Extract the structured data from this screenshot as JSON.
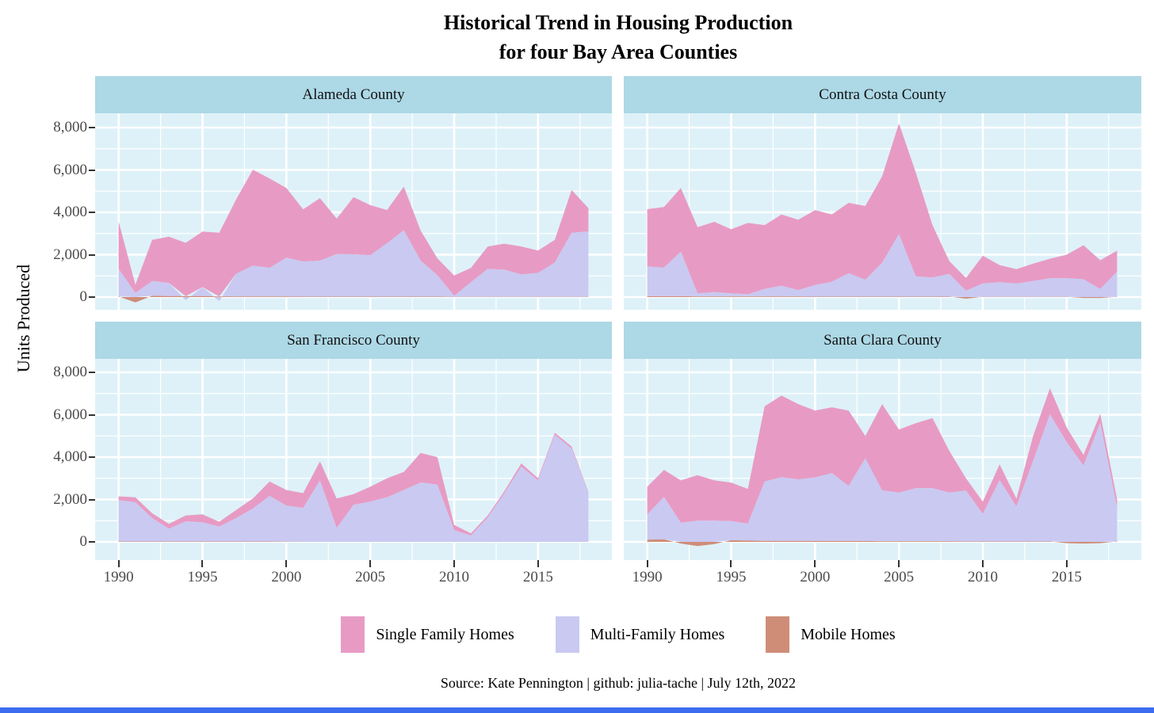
{
  "title": {
    "line1": "Historical Trend in Housing Production",
    "line2": "for four Bay Area Counties"
  },
  "y_axis": {
    "label": "Units Produced",
    "tick_labels": [
      "8,000",
      "6,000",
      "4,000",
      "2,000",
      "0"
    ],
    "tick_values": [
      8000,
      6000,
      4000,
      2000,
      0
    ]
  },
  "x_axis": {
    "tick_labels": [
      "1990",
      "1995",
      "2000",
      "2005",
      "2010",
      "2015"
    ],
    "tick_values": [
      1990,
      1995,
      2000,
      2005,
      2010,
      2015
    ]
  },
  "legend": [
    {
      "label": "Single Family Homes",
      "color": "#e79bc4"
    },
    {
      "label": "Multi-Family Homes",
      "color": "#cac9f1"
    },
    {
      "label": "Mobile Homes",
      "color": "#cf8d78"
    }
  ],
  "caption": "Source: Kate Pennington | github: julia-tache | July 12th, 2022",
  "colors": {
    "strip_background": "#add8e6",
    "panel_background": "#def1f8",
    "grid": "#ffffff",
    "tick_text": "#4a4a4a",
    "footer_bar": "#3b6cf0"
  },
  "chart_data": [
    {
      "type": "area",
      "title": "Alameda County",
      "stacked": true,
      "grid": true,
      "legend_position": "bottom",
      "xlim": [
        1988.6,
        2019.4
      ],
      "ylim": [
        -600,
        8670
      ],
      "x": [
        1990,
        1991,
        1992,
        1993,
        1994,
        1995,
        1996,
        1997,
        1998,
        1999,
        2000,
        2001,
        2002,
        2003,
        2004,
        2005,
        2006,
        2007,
        2008,
        2009,
        2010,
        2011,
        2012,
        2013,
        2014,
        2015,
        2016,
        2017,
        2018
      ],
      "series": [
        {
          "name": "Single Family Homes",
          "values": [
            2250,
            380,
            1940,
            2180,
            2520,
            2620,
            3010,
            3500,
            4530,
            4220,
            3290,
            2460,
            2950,
            1670,
            2695,
            2370,
            1570,
            2060,
            1420,
            800,
            960,
            680,
            1060,
            1230,
            1320,
            1060,
            1070,
            2020,
            1100
          ]
        },
        {
          "name": "Multi-Family Homes",
          "values": [
            1300,
            200,
            700,
            620,
            -150,
            420,
            -200,
            1070,
            1450,
            1350,
            1830,
            1660,
            1700,
            2010,
            2000,
            1950,
            2520,
            3130,
            1700,
            1010,
            50,
            690,
            1320,
            1280,
            1060,
            1130,
            1620,
            3020,
            3090
          ]
        },
        {
          "name": "Mobile Homes",
          "values": [
            30,
            -250,
            60,
            50,
            40,
            50,
            30,
            30,
            30,
            30,
            30,
            20,
            20,
            20,
            20,
            20,
            20,
            20,
            20,
            20,
            10,
            10,
            10,
            10,
            10,
            10,
            10,
            10,
            10
          ]
        }
      ]
    },
    {
      "type": "area",
      "title": "Contra Costa County",
      "stacked": true,
      "grid": true,
      "legend_position": "bottom",
      "xlim": [
        1988.6,
        2019.4
      ],
      "ylim": [
        -600,
        8670
      ],
      "x": [
        1990,
        1991,
        1992,
        1993,
        1994,
        1995,
        1996,
        1997,
        1998,
        1999,
        2000,
        2001,
        2002,
        2003,
        2004,
        2005,
        2006,
        2007,
        2008,
        2009,
        2010,
        2011,
        2012,
        2013,
        2014,
        2015,
        2016,
        2017,
        2018
      ],
      "series": [
        {
          "name": "Single Family Homes",
          "values": [
            2710,
            2860,
            3010,
            3120,
            3320,
            3020,
            3370,
            3020,
            3370,
            3320,
            3530,
            3180,
            3330,
            3480,
            4080,
            5230,
            4920,
            2480,
            610,
            600,
            1310,
            810,
            680,
            820,
            920,
            1110,
            1610,
            1360,
            990
          ]
        },
        {
          "name": "Multi-Family Homes",
          "values": [
            1400,
            1350,
            2100,
            150,
            200,
            150,
            100,
            350,
            500,
            300,
            550,
            700,
            1100,
            800,
            1600,
            2950,
            960,
            900,
            1070,
            300,
            630,
            690,
            630,
            750,
            880,
            880,
            840,
            380,
            1190
          ]
        },
        {
          "name": "Mobile Homes",
          "values": [
            40,
            40,
            40,
            30,
            30,
            30,
            30,
            30,
            30,
            30,
            20,
            20,
            20,
            20,
            20,
            20,
            20,
            20,
            20,
            -75,
            10,
            10,
            10,
            10,
            10,
            10,
            -40,
            -40,
            10
          ]
        }
      ]
    },
    {
      "type": "area",
      "title": "San Francisco County",
      "stacked": true,
      "grid": true,
      "legend_position": "bottom",
      "xlim": [
        1988.6,
        2019.4
      ],
      "ylim": [
        -860,
        8670
      ],
      "x": [
        1990,
        1991,
        1992,
        1993,
        1994,
        1995,
        1996,
        1997,
        1998,
        1999,
        2000,
        2001,
        2002,
        2003,
        2004,
        2005,
        2006,
        2007,
        2008,
        2009,
        2010,
        2011,
        2012,
        2013,
        2014,
        2015,
        2016,
        2017,
        2018
      ],
      "series": [
        {
          "name": "Single Family Homes",
          "values": [
            180,
            230,
            230,
            230,
            280,
            380,
            230,
            380,
            480,
            680,
            740,
            700,
            900,
            1400,
            500,
            700,
            900,
            850,
            1400,
            1300,
            250,
            100,
            100,
            100,
            150,
            100,
            100,
            100,
            50
          ]
        },
        {
          "name": "Multi-Family Homes",
          "values": [
            1950,
            1850,
            1100,
            600,
            950,
            900,
            700,
            1100,
            1550,
            2150,
            1700,
            1600,
            2900,
            650,
            1750,
            1900,
            2100,
            2450,
            2800,
            2700,
            550,
            300,
            1150,
            2300,
            3550,
            2900,
            5050,
            4400,
            2300
          ]
        },
        {
          "name": "Mobile Homes",
          "values": [
            20,
            20,
            20,
            20,
            20,
            20,
            20,
            20,
            20,
            20,
            10,
            0,
            0,
            0,
            0,
            0,
            0,
            0,
            0,
            0,
            0,
            0,
            0,
            0,
            0,
            0,
            0,
            0,
            0
          ]
        }
      ]
    },
    {
      "type": "area",
      "title": "Santa Clara County",
      "stacked": true,
      "grid": true,
      "legend_position": "bottom",
      "xlim": [
        1988.6,
        2019.4
      ],
      "ylim": [
        -860,
        8670
      ],
      "x": [
        1990,
        1991,
        1992,
        1993,
        1994,
        1995,
        1996,
        1997,
        1998,
        1999,
        2000,
        2001,
        2002,
        2003,
        2004,
        2005,
        2006,
        2007,
        2008,
        2009,
        2010,
        2011,
        2012,
        2013,
        2014,
        2015,
        2016,
        2017,
        2018
      ],
      "series": [
        {
          "name": "Single Family Homes",
          "values": [
            1300,
            1280,
            2000,
            2150,
            1900,
            1820,
            1640,
            3550,
            3850,
            3550,
            3160,
            3110,
            3560,
            1060,
            4070,
            2970,
            3070,
            3310,
            1970,
            580,
            580,
            740,
            370,
            1180,
            1230,
            700,
            500,
            430,
            380
          ]
        },
        {
          "name": "Multi-Family Homes",
          "values": [
            1200,
            2000,
            900,
            1000,
            1000,
            900,
            800,
            2800,
            3000,
            2900,
            3000,
            3200,
            2600,
            3900,
            2400,
            2300,
            2500,
            2500,
            2300,
            2400,
            1300,
            2900,
            1650,
            3800,
            6000,
            4700,
            3600,
            5620,
            1600
          ]
        },
        {
          "name": "Mobile Homes",
          "values": [
            100,
            120,
            -80,
            -200,
            -100,
            80,
            60,
            50,
            50,
            50,
            40,
            40,
            40,
            40,
            30,
            30,
            30,
            30,
            30,
            20,
            20,
            20,
            20,
            20,
            20,
            -60,
            -80,
            -60,
            20
          ]
        }
      ]
    }
  ]
}
